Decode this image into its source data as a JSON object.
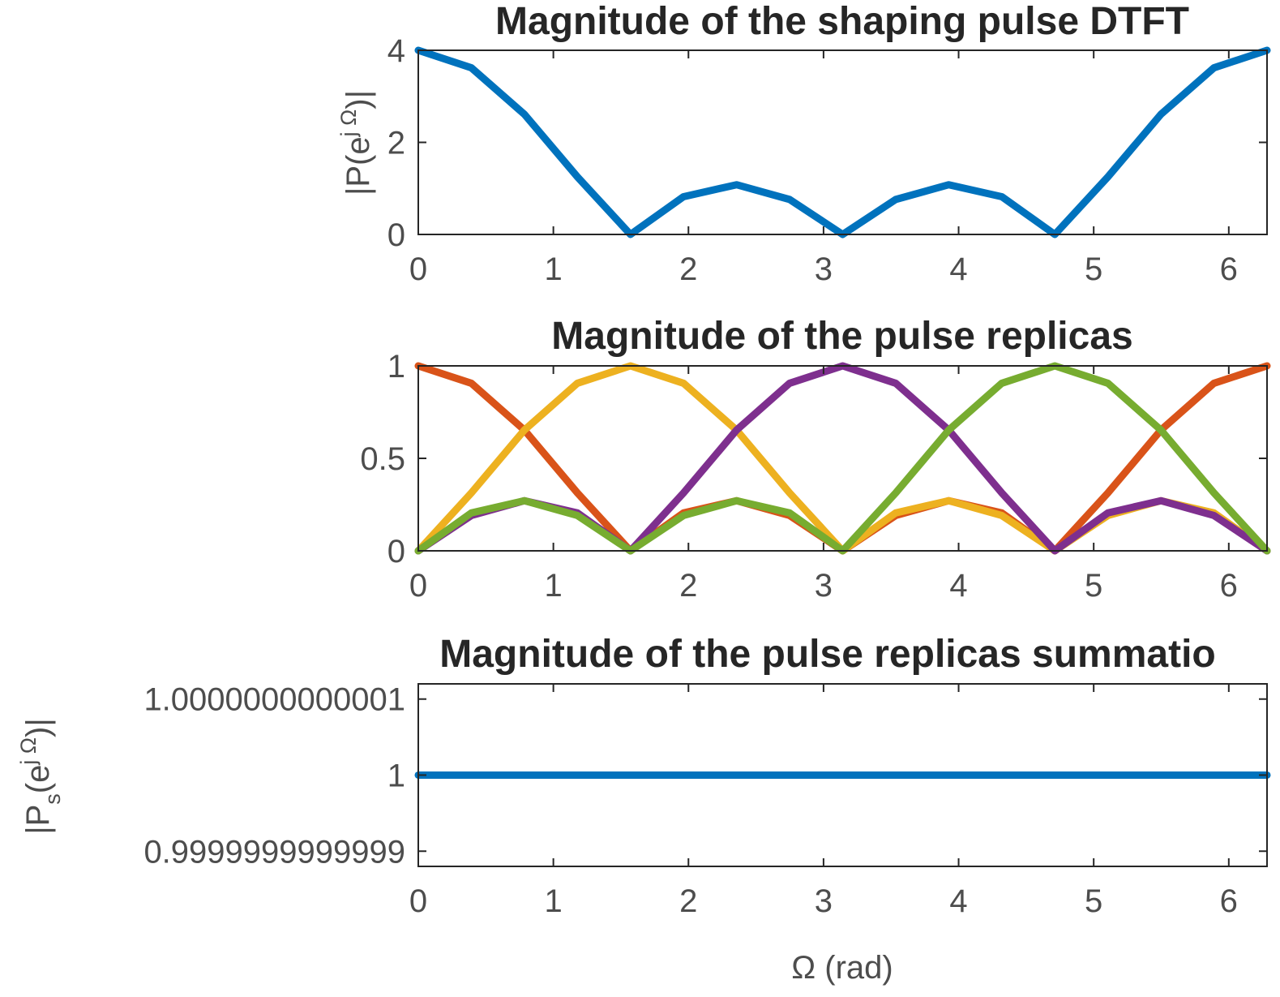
{
  "chart_data": [
    {
      "type": "line",
      "title": "Magnitude of the shaping pulse DTFT",
      "xlabel": "",
      "ylabel_parts": [
        "|P(e",
        "j Ω",
        ")|"
      ],
      "xlim": [
        0,
        6.2832
      ],
      "ylim": [
        0,
        4
      ],
      "xticks": [
        0,
        1,
        2,
        3,
        4,
        5,
        6
      ],
      "xtick_labels": [
        "0",
        "1",
        "2",
        "3",
        "4",
        "5",
        "6"
      ],
      "yticks": [
        0,
        2,
        4
      ],
      "ytick_labels": [
        "0",
        "2",
        "4"
      ],
      "grid": false,
      "x": [
        0,
        0.3927,
        0.7854,
        1.1781,
        1.5708,
        1.9635,
        2.3562,
        2.7489,
        3.1416,
        3.5343,
        3.927,
        4.3197,
        4.7124,
        5.1051,
        5.4978,
        5.8905,
        6.2832
      ],
      "series": [
        {
          "color": "#0072bd",
          "values": [
            4.0,
            3.62,
            2.61,
            1.25,
            0.0,
            0.82,
            1.08,
            0.76,
            0.0,
            0.76,
            1.08,
            0.82,
            0.0,
            1.25,
            2.61,
            3.62,
            4.0
          ]
        }
      ]
    },
    {
      "type": "line",
      "title": "Magnitude of the pulse replicas",
      "xlabel": "",
      "xlim": [
        0,
        6.2832
      ],
      "ylim": [
        0,
        1
      ],
      "xticks": [
        0,
        1,
        2,
        3,
        4,
        5,
        6
      ],
      "xtick_labels": [
        "0",
        "1",
        "2",
        "3",
        "4",
        "5",
        "6"
      ],
      "yticks": [
        0,
        0.5,
        1
      ],
      "ytick_labels": [
        "0",
        "0.5",
        "1"
      ],
      "grid": false,
      "x": [
        0,
        0.3927,
        0.7854,
        1.1781,
        1.5708,
        1.9635,
        2.3562,
        2.7489,
        3.1416,
        3.5343,
        3.927,
        4.3197,
        4.7124,
        5.1051,
        5.4978,
        5.8905,
        6.2832
      ],
      "series": [
        {
          "color": "#d95319",
          "values": [
            1.0,
            0.906,
            0.653,
            0.313,
            0.0,
            0.205,
            0.271,
            0.191,
            0.0,
            0.191,
            0.271,
            0.205,
            0.0,
            0.313,
            0.653,
            0.906,
            1.0
          ]
        },
        {
          "color": "#edb120",
          "values": [
            0.0,
            0.313,
            0.653,
            0.906,
            1.0,
            0.906,
            0.653,
            0.313,
            0.0,
            0.205,
            0.271,
            0.191,
            0.0,
            0.191,
            0.271,
            0.205,
            0.0
          ]
        },
        {
          "color": "#7e2f8e",
          "values": [
            0.0,
            0.191,
            0.271,
            0.205,
            0.0,
            0.313,
            0.653,
            0.906,
            1.0,
            0.906,
            0.653,
            0.313,
            0.0,
            0.205,
            0.271,
            0.191,
            0.0
          ]
        },
        {
          "color": "#77ac30",
          "values": [
            0.0,
            0.205,
            0.271,
            0.191,
            0.0,
            0.191,
            0.271,
            0.205,
            0.0,
            0.313,
            0.653,
            0.906,
            1.0,
            0.906,
            0.653,
            0.313,
            0.0
          ]
        }
      ]
    },
    {
      "type": "line",
      "title": "Magnitude of the pulse replicas summatio",
      "xlabel": "Ω (rad)",
      "ylabel_parts": [
        "|P",
        "s",
        "(e",
        "j Ω",
        ")|"
      ],
      "xlim": [
        0,
        6.2832
      ],
      "ylim": [
        0.99999999999988,
        1.00000000000012
      ],
      "xticks": [
        0,
        1,
        2,
        3,
        4,
        5,
        6
      ],
      "xtick_labels": [
        "0",
        "1",
        "2",
        "3",
        "4",
        "5",
        "6"
      ],
      "yticks": [
        0.9999999999999,
        1,
        1.0000000000001
      ],
      "ytick_labels": [
        "0.9999999999999",
        "1",
        "1.0000000000001"
      ],
      "grid": false,
      "x": [
        0,
        6.2832
      ],
      "series": [
        {
          "color": "#0072bd",
          "values": [
            1,
            1
          ]
        }
      ]
    }
  ]
}
